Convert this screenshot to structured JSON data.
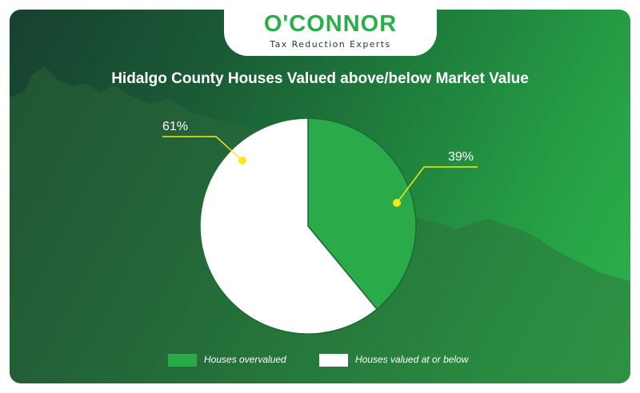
{
  "brand": {
    "name": "O'CONNOR",
    "tagline": "Tax Reduction Experts"
  },
  "chart_data": {
    "type": "pie",
    "title": "Hidalgo County Houses Valued above/below Market Value",
    "series": [
      {
        "name": "Houses overvalued",
        "value": 39,
        "label": "39%",
        "color": "#2aaa48"
      },
      {
        "name": "Houses valued at or below",
        "value": 61,
        "label": "61%",
        "color": "#ffffff"
      }
    ],
    "legend_position": "bottom",
    "annotation_color": "#f4ea1a"
  }
}
